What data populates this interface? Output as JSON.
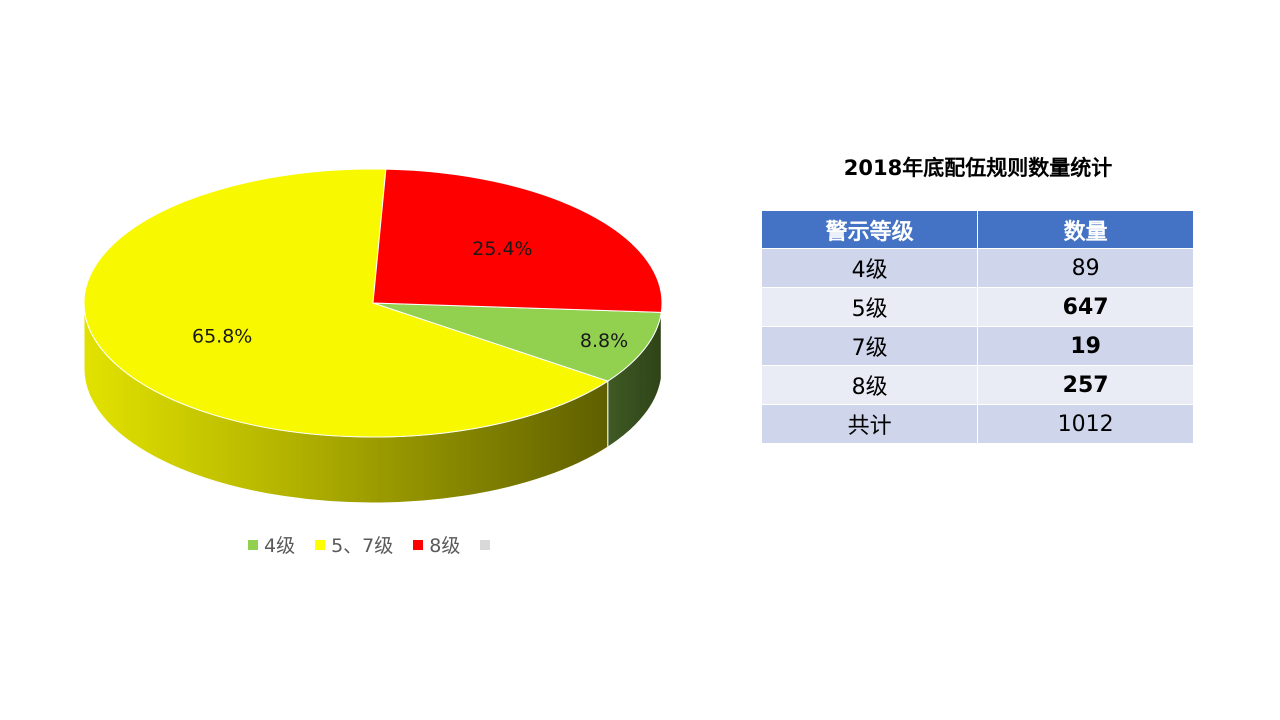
{
  "chart_data": {
    "type": "pie",
    "style": "3d",
    "slices": [
      {
        "label": "4级",
        "value": 8.8,
        "data_label": "8.8%",
        "color": "#92d050"
      },
      {
        "label": "5、7级",
        "value": 65.8,
        "data_label": "65.8%",
        "color": "#f8f800"
      },
      {
        "label": "8级",
        "value": 25.4,
        "data_label": "25.4%",
        "color": "#ff0000"
      }
    ],
    "legend": {
      "placement": "bottom",
      "entries": [
        {
          "label": "4级",
          "color": "#92d050"
        },
        {
          "label": "5、7级",
          "color": "#ffff00"
        },
        {
          "label": "8级",
          "color": "#ff0000"
        },
        {
          "label": "",
          "color": "#d9d9d9"
        }
      ]
    }
  },
  "table": {
    "title": "2018年底配伍规则数量统计",
    "headers": [
      "警示等级",
      "数量"
    ],
    "rows": [
      {
        "level": "4级",
        "count": "89",
        "bold": false
      },
      {
        "level": "5级",
        "count": "647",
        "bold": true
      },
      {
        "level": "7级",
        "count": "19",
        "bold": true
      },
      {
        "level": "8级",
        "count": "257",
        "bold": true
      },
      {
        "level": "共计",
        "count": "1012",
        "bold": false
      }
    ],
    "header_color": "#4472c4",
    "row_colors": [
      "#cfd5ea",
      "#e9ebf5"
    ]
  }
}
